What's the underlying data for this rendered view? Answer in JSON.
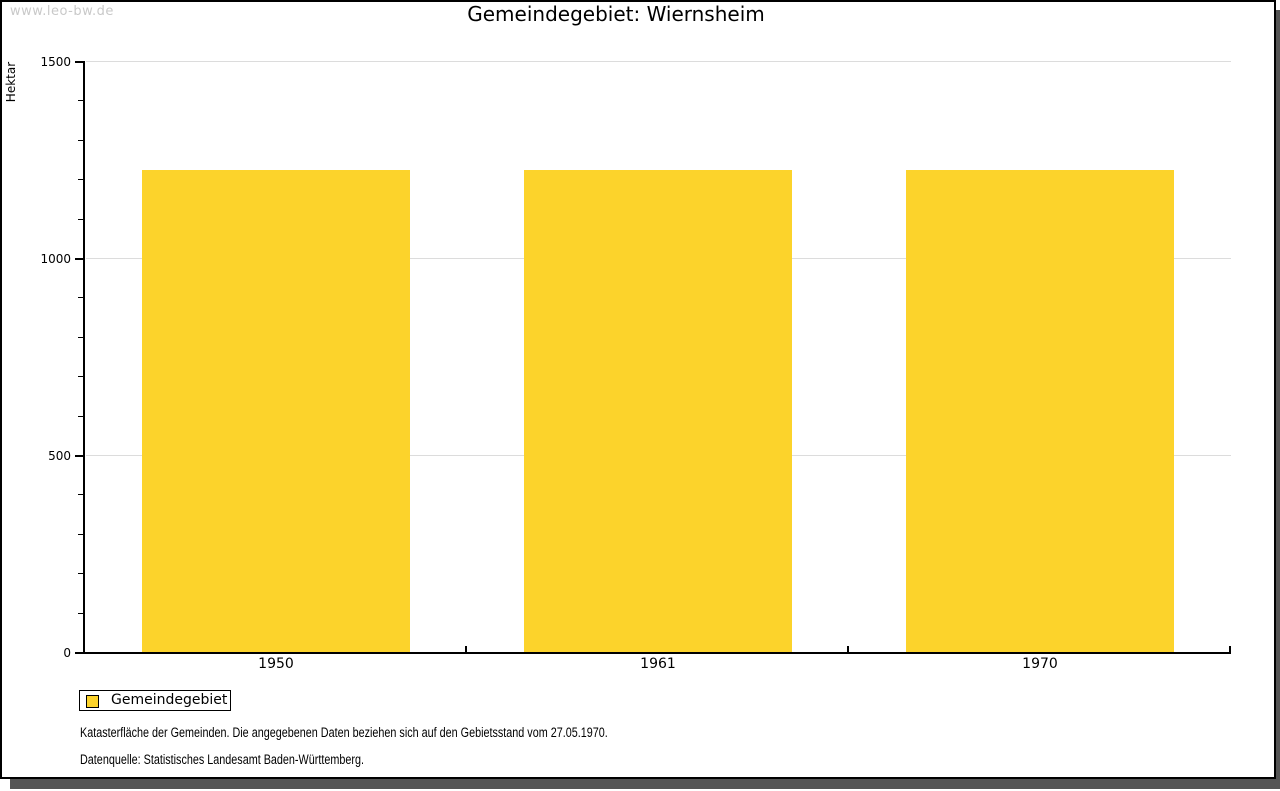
{
  "watermark": "www.leo-bw.de",
  "title": "Gemeindegebiet: Wiernsheim",
  "chart_data": {
    "type": "bar",
    "title": "Gemeindegebiet: Wiernsheim",
    "categories": [
      "1950",
      "1961",
      "1970"
    ],
    "series": [
      {
        "name": "Gemeindegebiet",
        "values": [
          1224,
          1224,
          1224
        ]
      }
    ],
    "xlabel": "",
    "ylabel": "Hektar",
    "ylim": [
      0,
      1500
    ],
    "y_major_ticks": [
      0,
      500,
      1000,
      1500
    ],
    "y_minor_step": 100,
    "grid": "horizontal-major-only",
    "legend_position": "bottom-left",
    "bar_color": "#fcd32b"
  },
  "legend": {
    "items": [
      {
        "label": "Gemeindegebiet",
        "color": "#fcd32b"
      }
    ]
  },
  "footer": {
    "line1": "Katasterfläche der Gemeinden. Die angegebenen Daten beziehen sich auf den Gebietsstand vom 27.05.1970.",
    "line2": "Datenquelle: Statistisches Landesamt Baden-Württemberg."
  },
  "colors": {
    "bar": "#fcd32b",
    "grid": "#dcdcdc",
    "axis": "#000000",
    "watermark": "#c9c9c9",
    "frame_shadow": "#545454"
  }
}
